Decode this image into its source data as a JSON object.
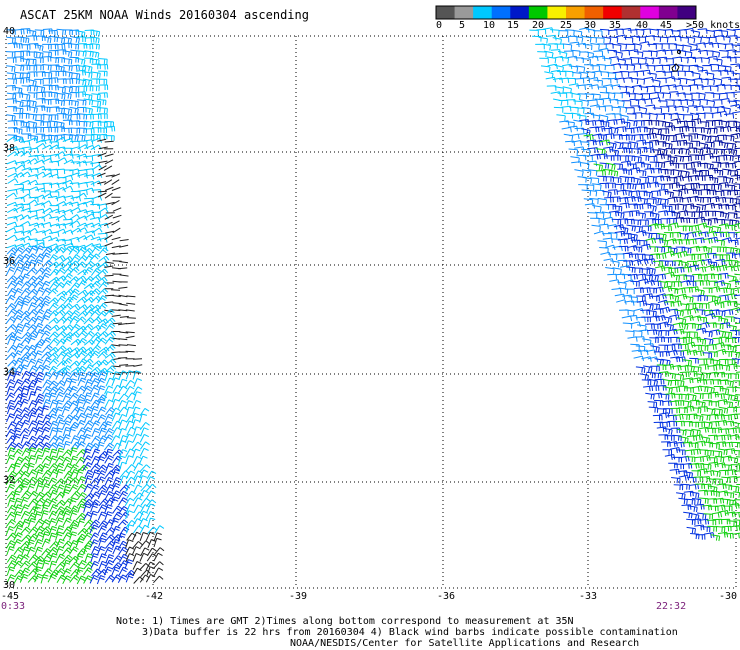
{
  "title": "ASCAT 25KM NOAA Winds 20160304 ascending",
  "legend": {
    "labels": [
      "0",
      "5",
      "10",
      "15",
      "20",
      "25",
      "30",
      "35",
      "40",
      "45",
      ">50 knots"
    ],
    "colors": [
      "#555555",
      "#9a9a9a",
      "#00c8ff",
      "#0070ff",
      "#0018c8",
      "#00c800",
      "#f8f000",
      "#f8a000",
      "#f06000",
      "#f00000",
      "#b03030",
      "#e000e0",
      "#800090",
      "#400080"
    ]
  },
  "axes": {
    "lon_labels": [
      "-45",
      "-42",
      "-39",
      "-36",
      "-33",
      "-30"
    ],
    "lat_labels": [
      "40",
      "38",
      "36",
      "34",
      "32",
      "30"
    ]
  },
  "times": {
    "left": "0:33",
    "right": "22:32"
  },
  "notes": [
    "Note: 1) Times are GMT 2)Times along bottom correspond to measurement at 35N",
    "3)Data buffer is 22 hrs from 20160304 4) Black wind barbs indicate possible contamination",
    "NOAA/NESDIS/Center for Satellite Applications and Research"
  ]
}
